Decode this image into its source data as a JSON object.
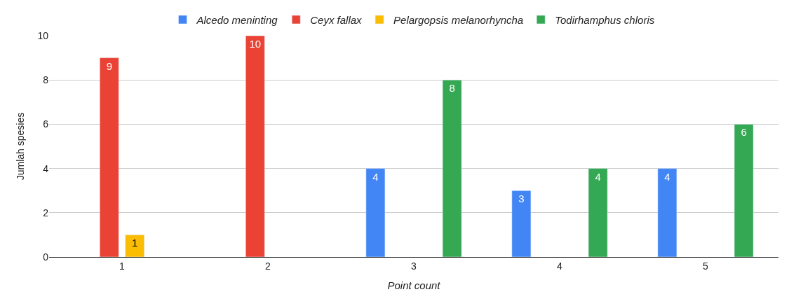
{
  "chart_data": {
    "type": "bar",
    "xlabel": "Point count",
    "ylabel": "Jumlah spesies",
    "categories": [
      "1",
      "2",
      "3",
      "4",
      "5"
    ],
    "series": [
      {
        "name": "Alcedo meninting",
        "color": "#4285f4",
        "values": [
          null,
          null,
          4,
          3,
          4
        ]
      },
      {
        "name": "Ceyx fallax",
        "color": "#ea4335",
        "values": [
          9,
          10,
          null,
          null,
          null
        ]
      },
      {
        "name": "Pelargopsis melanorhyncha",
        "color": "#fbbc04",
        "values": [
          1,
          null,
          null,
          null,
          null
        ]
      },
      {
        "name": "Todirhamphus chloris",
        "color": "#34a853",
        "values": [
          null,
          null,
          8,
          4,
          6
        ]
      }
    ],
    "ylim": [
      0,
      10
    ],
    "yticks": [
      0,
      2,
      4,
      6,
      8,
      10
    ],
    "grid": "y",
    "legend": "top",
    "data_labels": true
  }
}
